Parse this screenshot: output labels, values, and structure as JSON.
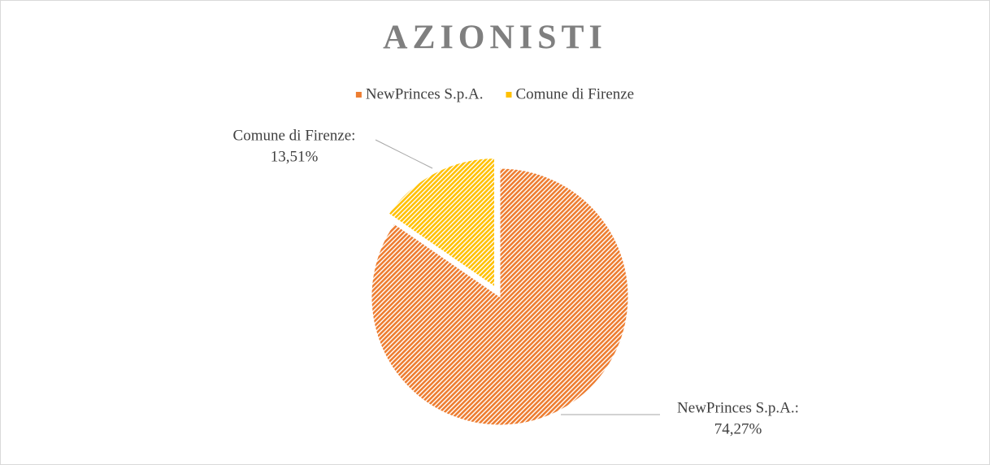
{
  "chart_data": {
    "type": "pie",
    "title": "AZIONISTI",
    "categories": [
      "NewPrinces S.p.A.",
      "Comune di Firenze"
    ],
    "values": [
      74.27,
      13.51
    ],
    "value_labels": [
      "74,27%",
      "13,51%"
    ],
    "label_names": [
      "NewPrinces S.p.A.:",
      "Comune di Firenze:"
    ],
    "colors": [
      "#ed7d31",
      "#ffc000"
    ],
    "legend": "top"
  }
}
